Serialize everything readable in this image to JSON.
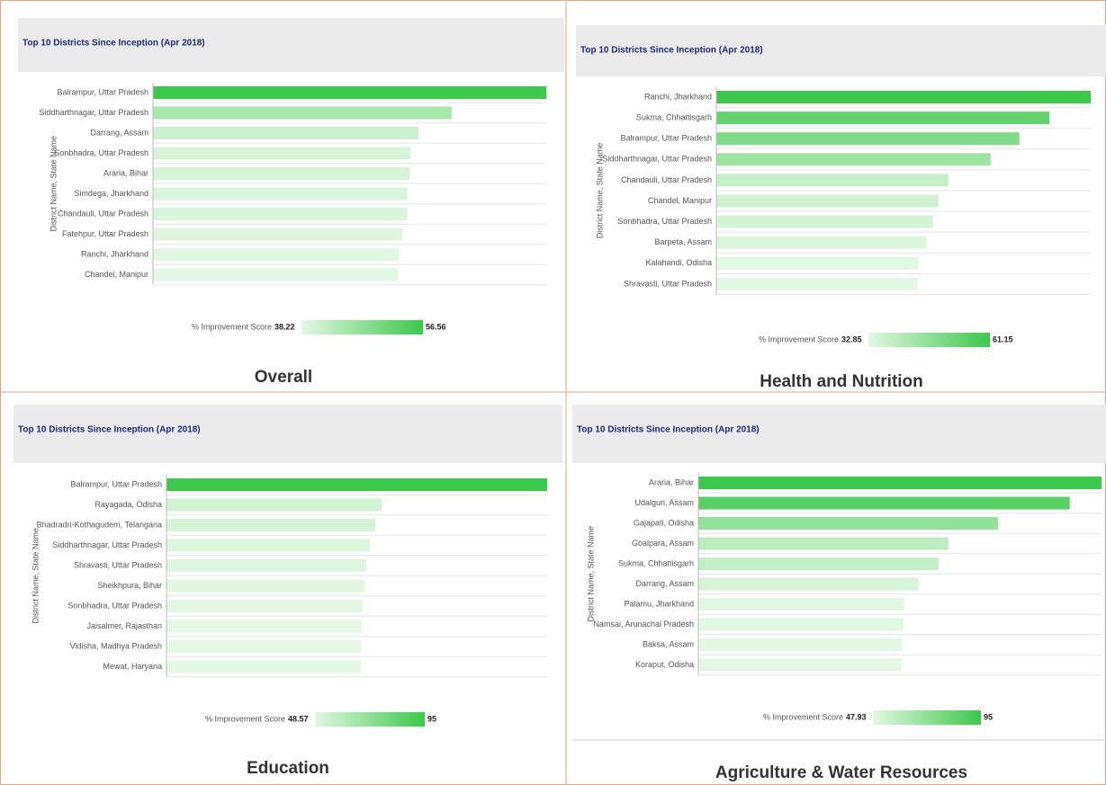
{
  "chart_data": [
    {
      "type": "bar",
      "orientation": "horizontal",
      "title": "Top 10 Districts Since Inception (Apr 2018)",
      "caption": "Overall",
      "ylabel": "District Name, State Name",
      "categories": [
        "Balrampur, Uttar Pradesh",
        "Siddharthnagar, Uttar Pradesh",
        "Darrang, Assam",
        "Sonbhadra, Uttar Pradesh",
        "Araria, Bihar",
        "Simdega, Jharkhand",
        "Chandauli, Uttar Pradesh",
        "Fatehpur, Uttar Pradesh",
        "Ranchi, Jharkhand",
        "Chandel, Manipur"
      ],
      "values": [
        56.56,
        44.9,
        40.8,
        39.8,
        39.7,
        39.4,
        39.4,
        38.8,
        38.4,
        38.22
      ],
      "xlim": [
        8,
        56.56
      ],
      "color_low": "#e2f8e2",
      "color_high": "#3cc84a",
      "legend": {
        "title": "% Improvement Score",
        "min": 38.22,
        "max": 56.56
      }
    },
    {
      "type": "bar",
      "orientation": "horizontal",
      "title": "Top 10 Districts Since Inception (Apr 2018)",
      "caption": "Health and Nutrition",
      "ylabel": "District Name, State Name",
      "categories": [
        "Ranchi, Jharkhand",
        "Sukma, Chhattisgarh",
        "Balrampur, Uttar Pradesh",
        "Siddharthnagar, Uttar Pradesh",
        "Chandauli, Uttar Pradesh",
        "Chandel, Manipur",
        "Sonbhadra, Uttar Pradesh",
        "Barpeta, Assam",
        "Kalahandi, Odisha",
        "Shravasti, Uttar Pradesh"
      ],
      "values": [
        61.15,
        54.4,
        49.5,
        44.8,
        37.9,
        36.3,
        35.4,
        34.3,
        32.95,
        32.85
      ],
      "xlim": [
        0,
        61.15
      ],
      "color_low": "#e2f8e2",
      "color_high": "#3cc84a",
      "legend": {
        "title": "% Improvement Score",
        "min": 32.85,
        "max": 61.15
      }
    },
    {
      "type": "bar",
      "orientation": "horizontal",
      "title": "Top 10 Districts Since Inception (Apr 2018)",
      "caption": "Education",
      "ylabel": "District Name, State Name",
      "categories": [
        "Balrampur, Uttar Pradesh",
        "Rayagada, Odisha",
        "Bhadradri-Kothagudem, Telangana",
        "Siddharthnagar, Uttar Pradesh",
        "Shravasti, Uttar Pradesh",
        "Sheikhpura, Bihar",
        "Sonbhadra, Uttar Pradesh",
        "Jaisalmer, Rajasthan",
        "Vidisha, Madhya Pradesh",
        "Mewat, Haryana"
      ],
      "values": [
        95,
        53.7,
        52.1,
        50.8,
        49.9,
        49.4,
        49.0,
        48.7,
        48.6,
        48.57
      ],
      "xlim": [
        0,
        95
      ],
      "color_low": "#e2f8e2",
      "color_high": "#3cc84a",
      "legend": {
        "title": "% Improvement Score",
        "min": 48.57,
        "max": 95
      }
    },
    {
      "type": "bar",
      "orientation": "horizontal",
      "title": "Top 10 Districts Since Inception (Apr 2018)",
      "caption": "Agriculture & Water Resources",
      "ylabel": "District Name, State Name",
      "categories": [
        "Araria, Bihar",
        "Udalguri, Assam",
        "Gajapati, Odisha",
        "Goalpara, Assam",
        "Sukma, Chhattisgarh",
        "Darrang, Assam",
        "Palamu, Jharkhand",
        "Namsai, Arunachal Pradesh",
        "Baksa, Assam",
        "Koraput, Odisha"
      ],
      "values": [
        95,
        87.5,
        70.6,
        58.9,
        56.6,
        51.9,
        48.5,
        48.3,
        48.0,
        47.93
      ],
      "xlim": [
        0,
        95
      ],
      "color_low": "#e2f8e2",
      "color_high": "#3cc84a",
      "legend": {
        "title": "% Improvement Score",
        "min": 47.93,
        "max": 95
      }
    }
  ]
}
